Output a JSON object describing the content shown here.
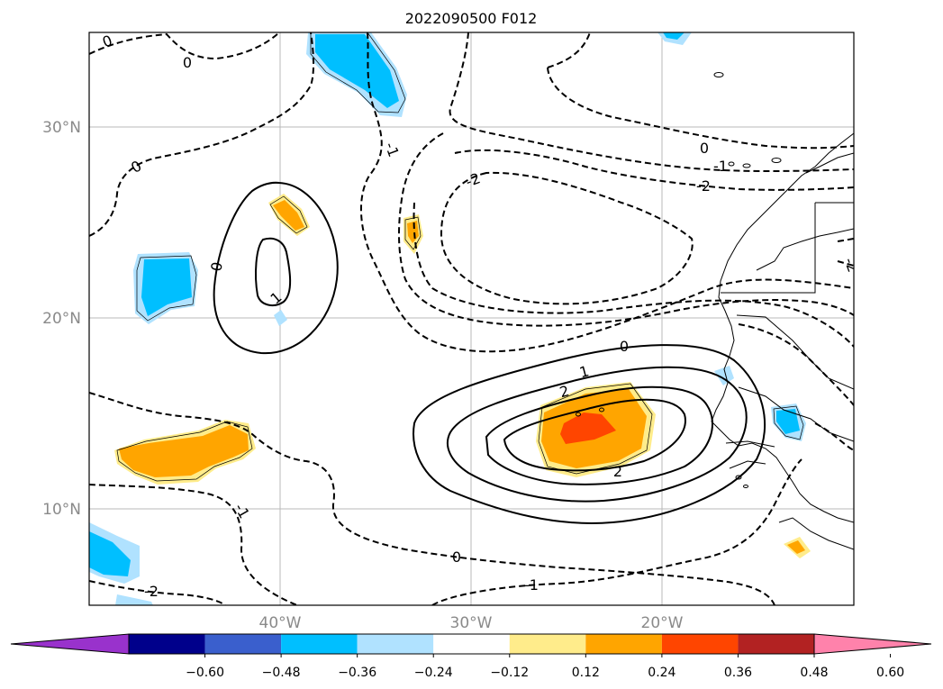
{
  "map": {
    "title": "2022090500 F012",
    "lat_labels": [
      "30°N",
      "20°N",
      "10°N"
    ],
    "lon_labels": [
      "40°W",
      "30°W",
      "20°W"
    ],
    "contour_labels": {
      "c0_nw": "0",
      "c0_nw2": "0",
      "c0_w": "0",
      "c1_n": "-1",
      "c2_n": "-2",
      "c0_ne": "0",
      "c1_ne": "-1",
      "c2_ne": "-2",
      "c0_loop": "0",
      "c1_loop": "1",
      "c0_s": "0",
      "c1_s": "1",
      "c2_s": "2",
      "c2_s2": "2",
      "c1_sw": "-1",
      "c0_sb": "0",
      "c1_sb": "-1",
      "c2_sw": "-2",
      "c2_e": "-2"
    }
  },
  "colorbar": {
    "colors": [
      "#9932CC",
      "#00008B",
      "#3A5FCD",
      "#00BFFF",
      "#B0E2FF",
      "#FFFFFF",
      "#FFEC8B",
      "#FFA500",
      "#FF4500",
      "#B22222",
      "#FF82AB"
    ],
    "tick_labels": [
      "−0.60",
      "−0.48",
      "−0.36",
      "−0.24",
      "−0.12",
      "0.12",
      "0.24",
      "0.36",
      "0.48",
      "0.60"
    ]
  }
}
